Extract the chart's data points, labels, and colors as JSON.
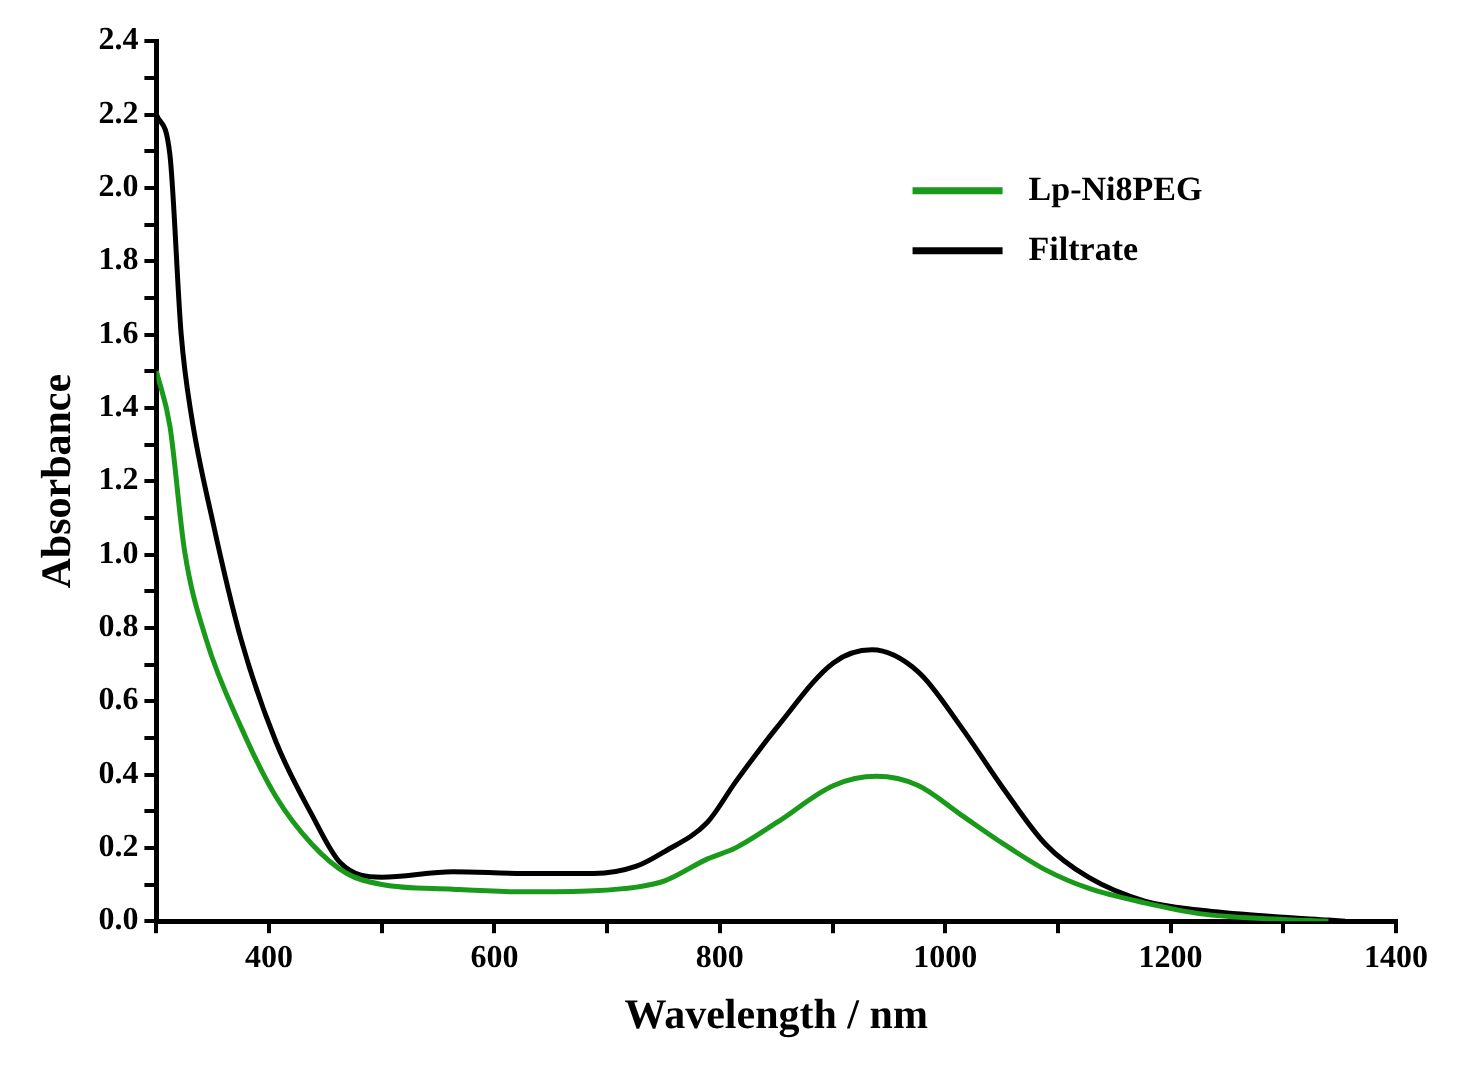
{
  "chart_data": {
    "type": "line",
    "xlabel": "Wavelength / nm",
    "ylabel": "Absorbance",
    "xlim": [
      300,
      1400
    ],
    "ylim": [
      0,
      2.4
    ],
    "xticks": [
      {
        "value": 300,
        "label": null
      },
      400,
      {
        "value": 500,
        "label": null
      },
      600,
      {
        "value": 700,
        "label": null
      },
      800,
      {
        "value": 900,
        "label": null
      },
      1000,
      {
        "value": 1100,
        "label": null
      },
      1200,
      {
        "value": 1300,
        "label": null
      },
      1400
    ],
    "yticks": [
      {
        "value": 0,
        "label": "0.0"
      },
      {
        "value": 0.1,
        "label": null
      },
      0.2,
      {
        "value": 0.3,
        "label": null
      },
      0.4,
      {
        "value": 0.5,
        "label": null
      },
      0.6,
      {
        "value": 0.7,
        "label": null
      },
      0.8,
      {
        "value": 0.9,
        "label": null
      },
      {
        "value": 1,
        "label": "1.0"
      },
      {
        "value": 1.1,
        "label": null
      },
      1.2,
      {
        "value": 1.3,
        "label": null
      },
      1.4,
      {
        "value": 1.5,
        "label": null
      },
      1.6,
      {
        "value": 1.7,
        "label": null
      },
      1.8,
      {
        "value": 1.9,
        "label": null
      },
      {
        "value": 2,
        "label": "2.0"
      },
      {
        "value": 2.1,
        "label": null
      },
      2.2,
      {
        "value": 2.3,
        "label": null
      },
      2.4
    ],
    "grid": false,
    "legend": "top right",
    "marker": "none",
    "line_style": "solid",
    "series": [
      {
        "name": "Lp-Ni8PEG",
        "color": "#1a9a1a",
        "x": [
          300,
          312,
          325,
          344,
          375,
          406,
          438,
          469,
          500,
          563,
          626,
          688,
          726,
          751,
          789,
          814,
          851,
          901,
          939,
          976,
          1014,
          1052,
          1089,
          1127,
          1177,
          1227,
          1290,
          1340
        ],
        "values": [
          1.5,
          1.35,
          1.01,
          0.77,
          0.53,
          0.34,
          0.21,
          0.13,
          0.1,
          0.087,
          0.08,
          0.083,
          0.093,
          0.11,
          0.17,
          0.2,
          0.27,
          0.37,
          0.395,
          0.37,
          0.29,
          0.21,
          0.14,
          0.09,
          0.05,
          0.02,
          0.006,
          0
        ]
      },
      {
        "name": "Filtrate",
        "color": "#000000",
        "x": [
          300,
          312,
          322,
          331,
          350,
          375,
          406,
          438,
          463,
          500,
          563,
          626,
          688,
          726,
          751,
          789,
          814,
          851,
          901,
          935,
          976,
          1014,
          1052,
          1089,
          1127,
          1177,
          1227,
          1290,
          1340,
          1355
        ],
        "values": [
          2.2,
          2.09,
          1.6,
          1.38,
          1.09,
          0.77,
          0.49,
          0.29,
          0.16,
          0.12,
          0.135,
          0.13,
          0.13,
          0.15,
          0.19,
          0.27,
          0.38,
          0.53,
          0.705,
          0.74,
          0.68,
          0.53,
          0.36,
          0.21,
          0.12,
          0.055,
          0.03,
          0.013,
          0.003,
          0
        ]
      }
    ]
  }
}
